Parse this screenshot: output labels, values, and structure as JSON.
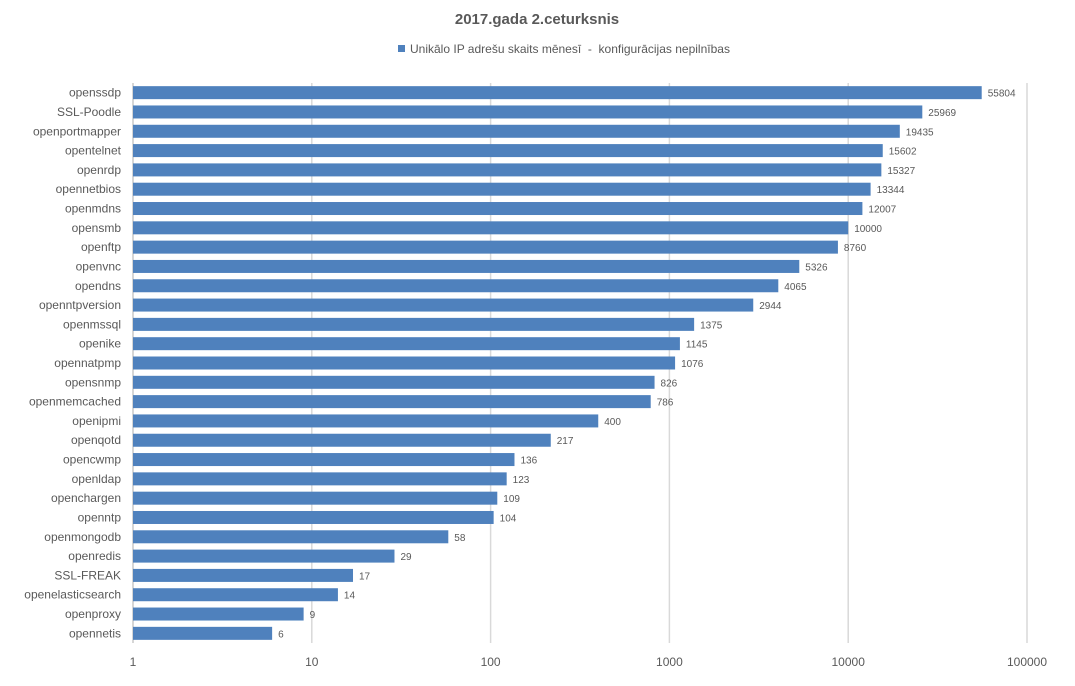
{
  "chart_data": {
    "type": "bar",
    "orientation": "horizontal",
    "title": "2017.gada 2.ceturksnis",
    "legend_position": "top",
    "x_scale": "log",
    "xlim": [
      1,
      100000
    ],
    "x_ticks": [
      "1",
      "10",
      "100",
      "1000",
      "10000",
      "100000"
    ],
    "grid": true,
    "colors": {
      "bar": "#4F81BD",
      "grid": "#D9D9D9",
      "text": "#595959"
    },
    "categories": [
      "openssdp",
      "SSL-Poodle",
      "openportmapper",
      "opentelnet",
      "openrdp",
      "opennetbios",
      "openmdns",
      "opensmb",
      "openftp",
      "openvnc",
      "opendns",
      "openntpversion",
      "openmssql",
      "openike",
      "opennatpmp",
      "opensnmp",
      "openmemcached",
      "openipmi",
      "openqotd",
      "opencwmp",
      "openldap",
      "openchargen",
      "openntp",
      "openmongodb",
      "openredis",
      "SSL-FREAK",
      "openelasticsearch",
      "openproxy",
      "opennetis"
    ],
    "series": [
      {
        "name": "Unikālo IP adrešu skaits mēnesī  -  konfigurācijas nepilnības",
        "values": [
          55804,
          25969,
          19435,
          15602,
          15327,
          13344,
          12007,
          10000,
          8760,
          5326,
          4065,
          2944,
          1375,
          1145,
          1076,
          826,
          786,
          400,
          217,
          136,
          123,
          109,
          104,
          58,
          29,
          17,
          14,
          9,
          6
        ]
      }
    ]
  }
}
